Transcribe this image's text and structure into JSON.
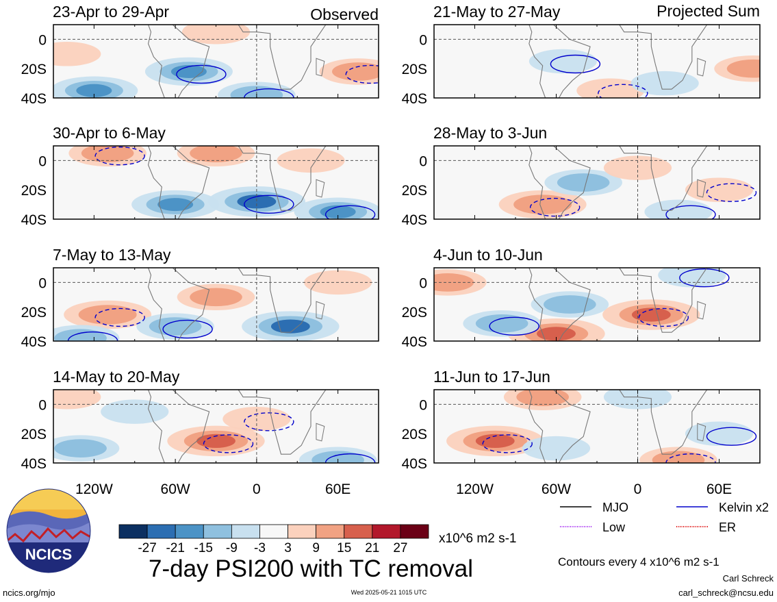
{
  "observed_label": "Observed",
  "projected_label": "Projected Sum",
  "latitude_ticks": [
    "0",
    "20S",
    "40S"
  ],
  "longitude_ticks": [
    "120W",
    "60W",
    "0",
    "60E"
  ],
  "panels": [
    {
      "period": "23-Apr to 29-Apr",
      "column": "left"
    },
    {
      "period": "30-Apr to 6-May",
      "column": "left"
    },
    {
      "period": "7-May to 13-May",
      "column": "left"
    },
    {
      "period": "14-May to 20-May",
      "column": "left"
    },
    {
      "period": "21-May to 27-May",
      "column": "right"
    },
    {
      "period": "28-May to 3-Jun",
      "column": "right"
    },
    {
      "period": "4-Jun to 10-Jun",
      "column": "right"
    },
    {
      "period": "11-Jun to 17-Jun",
      "column": "right"
    }
  ],
  "colorbar": {
    "tick_labels": [
      "-27",
      "-21",
      "-15",
      "-9",
      "-3",
      "3",
      "9",
      "15",
      "21",
      "27"
    ],
    "units": "x10^6 m2 s-1",
    "colors": [
      "#0b2f61",
      "#2c6eb2",
      "#4c93c6",
      "#8fc0df",
      "#c8e0ef",
      "#f7f7f7",
      "#fbd1bd",
      "#f1a283",
      "#d7604d",
      "#b2182b",
      "#6b0016"
    ]
  },
  "legend": [
    {
      "label": "MJO",
      "color": "#000000",
      "style": "solid"
    },
    {
      "label": "Kelvin x2",
      "color": "#0000cc",
      "style": "solid"
    },
    {
      "label": "Low",
      "color": "#a020f0",
      "style": "dotted"
    },
    {
      "label": "ER",
      "color": "#dd0000",
      "style": "dotted"
    }
  ],
  "contour_note": "Contours every 4 x10^6 m2 s-1",
  "main_title": "7-day PSI200 with TC removal",
  "logo_text": "NCICS",
  "footer": {
    "left": "ncics.org/mjo",
    "center": "Wed 2025-05-21 1015 UTC",
    "author": "Carl Schreck",
    "email": "carl_schreck@ncsu.edu"
  },
  "chart_data": {
    "type": "heatmap",
    "title": "7-day PSI200 with TC removal",
    "variable": "PSI200 anomaly",
    "units": "x10^6 m2 s-1",
    "color_levels": [
      -27,
      -21,
      -15,
      -9,
      -3,
      3,
      9,
      15,
      21,
      27
    ],
    "x_range_deg": [
      -150,
      90
    ],
    "y_range_deg": [
      -40,
      10
    ],
    "x_ticks": [
      "120W",
      "60W",
      "0",
      "60E"
    ],
    "y_ticks": [
      "0",
      "20S",
      "40S"
    ],
    "grid": "dashed lines at equator and prime meridian",
    "panels": [
      {
        "period": "23-Apr to 29-Apr",
        "type": "Observed",
        "features": [
          {
            "lon": -50,
            "lat": -22,
            "value": -15
          },
          {
            "lon": -120,
            "lat": -35,
            "value": -15
          },
          {
            "lon": 0,
            "lat": -38,
            "value": -9
          },
          {
            "lon": -30,
            "lat": 5,
            "value": 3
          },
          {
            "lon": 75,
            "lat": -22,
            "value": 9
          },
          {
            "lon": -140,
            "lat": -10,
            "value": 3
          }
        ]
      },
      {
        "period": "30-Apr to 6-May",
        "type": "Observed",
        "features": [
          {
            "lon": 0,
            "lat": -28,
            "value": -21
          },
          {
            "lon": -60,
            "lat": -30,
            "value": -15
          },
          {
            "lon": -110,
            "lat": 5,
            "value": 9
          },
          {
            "lon": -30,
            "lat": 5,
            "value": 9
          },
          {
            "lon": 60,
            "lat": -35,
            "value": -15
          },
          {
            "lon": 40,
            "lat": 0,
            "value": 3
          }
        ]
      },
      {
        "period": "7-May to 13-May",
        "type": "Observed",
        "features": [
          {
            "lon": -110,
            "lat": -22,
            "value": 15
          },
          {
            "lon": 25,
            "lat": -30,
            "value": -21
          },
          {
            "lon": -60,
            "lat": -30,
            "value": -9
          },
          {
            "lon": -30,
            "lat": -10,
            "value": 9
          },
          {
            "lon": -130,
            "lat": -38,
            "value": -9
          },
          {
            "lon": 60,
            "lat": 0,
            "value": 3
          }
        ]
      },
      {
        "period": "14-May to 20-May",
        "type": "Observed",
        "features": [
          {
            "lon": -30,
            "lat": -25,
            "value": 21
          },
          {
            "lon": -130,
            "lat": -30,
            "value": -9
          },
          {
            "lon": 60,
            "lat": -38,
            "value": -9
          },
          {
            "lon": -90,
            "lat": -5,
            "value": -3
          },
          {
            "lon": 0,
            "lat": -10,
            "value": 3
          },
          {
            "lon": -140,
            "lat": 5,
            "value": 3
          }
        ]
      },
      {
        "period": "21-May to 27-May",
        "type": "Projected Sum",
        "features": [
          {
            "lon": -55,
            "lat": -15,
            "value": -3
          },
          {
            "lon": 85,
            "lat": -20,
            "value": 9
          },
          {
            "lon": -20,
            "lat": -35,
            "value": 3
          },
          {
            "lon": 20,
            "lat": -30,
            "value": -3
          }
        ]
      },
      {
        "period": "28-May to 3-Jun",
        "type": "Projected Sum",
        "features": [
          {
            "lon": -70,
            "lat": -30,
            "value": 15
          },
          {
            "lon": -40,
            "lat": -15,
            "value": -9
          },
          {
            "lon": 60,
            "lat": -20,
            "value": 3
          },
          {
            "lon": 0,
            "lat": -5,
            "value": 3
          },
          {
            "lon": 30,
            "lat": -35,
            "value": -3
          }
        ]
      },
      {
        "period": "4-Jun to 10-Jun",
        "type": "Projected Sum",
        "features": [
          {
            "lon": 10,
            "lat": -22,
            "value": 21
          },
          {
            "lon": -60,
            "lat": -35,
            "value": 21
          },
          {
            "lon": -100,
            "lat": -28,
            "value": -9
          },
          {
            "lon": -50,
            "lat": -15,
            "value": -9
          },
          {
            "lon": 40,
            "lat": 5,
            "value": -3
          },
          {
            "lon": -140,
            "lat": 0,
            "value": 9
          }
        ]
      },
      {
        "period": "11-Jun to 17-Jun",
        "type": "Projected Sum",
        "features": [
          {
            "lon": -105,
            "lat": -25,
            "value": 21
          },
          {
            "lon": -70,
            "lat": 5,
            "value": 9
          },
          {
            "lon": 30,
            "lat": -38,
            "value": 9
          },
          {
            "lon": -60,
            "lat": -30,
            "value": -3
          },
          {
            "lon": 60,
            "lat": -20,
            "value": -3
          },
          {
            "lon": 0,
            "lat": 5,
            "value": -3
          }
        ]
      }
    ]
  }
}
